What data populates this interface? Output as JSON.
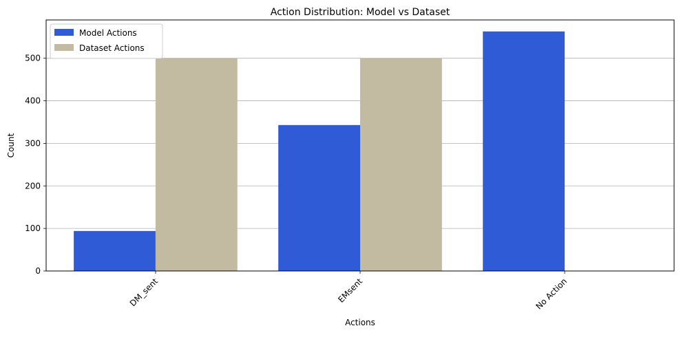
{
  "chart_data": {
    "type": "bar",
    "title": "Action Distribution: Model vs Dataset",
    "xlabel": "Actions",
    "ylabel": "Count",
    "categories": [
      "DM_sent",
      "EMsent",
      "No Action"
    ],
    "series": [
      {
        "name": "Model Actions",
        "values": [
          94,
          343,
          563
        ],
        "color": "#2f5bd6"
      },
      {
        "name": "Dataset Actions",
        "values": [
          500,
          500,
          0
        ],
        "color": "#c2baa1"
      }
    ],
    "ylim": [
      0,
      590
    ],
    "yticks": [
      0,
      100,
      200,
      300,
      400,
      500
    ],
    "grid": "y",
    "legend_position": "top-left",
    "xtick_rotation": 45
  }
}
